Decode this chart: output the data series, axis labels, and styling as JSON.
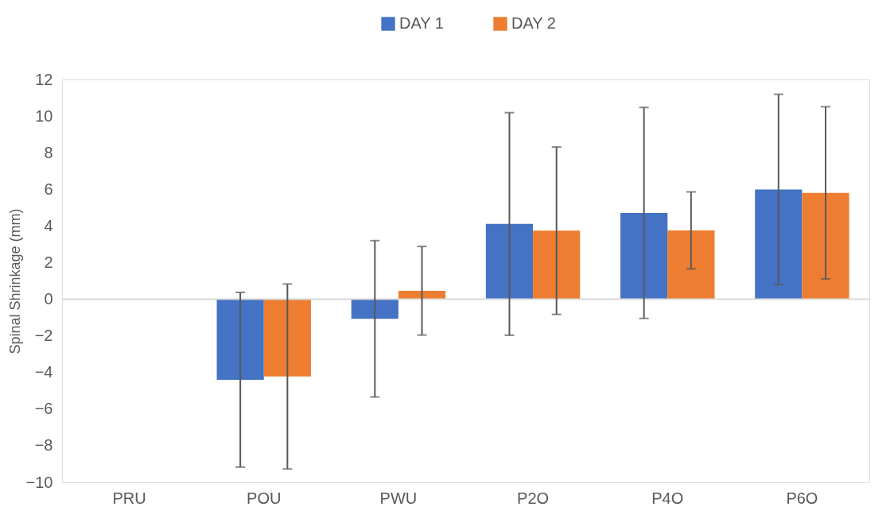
{
  "chart_data": {
    "type": "bar",
    "ylabel": "Spinal Shrinkage  (mm)",
    "categories": [
      "PRU",
      "POU",
      "PWU",
      "P2O",
      "P4O",
      "P6O"
    ],
    "series": [
      {
        "name": "DAY 1",
        "color": "#4472c4",
        "values": [
          0,
          -4.4,
          -1.07,
          4.11,
          4.71,
          5.99
        ],
        "errors": [
          null,
          4.77,
          4.27,
          6.08,
          5.76,
          5.2
        ]
      },
      {
        "name": "DAY 2",
        "color": "#ed7d31",
        "values": [
          0,
          -4.22,
          0.46,
          3.74,
          3.76,
          5.81
        ],
        "errors": [
          null,
          5.05,
          2.42,
          4.57,
          2.1,
          4.7
        ]
      }
    ],
    "ylim": [
      -10,
      12
    ],
    "yticks": [
      -10,
      -8,
      -6,
      -4,
      -2,
      0,
      2,
      4,
      6,
      8,
      10,
      12
    ],
    "ref_lines": [
      {
        "axis": "y",
        "value": 0,
        "color": "#d9d9d9"
      }
    ],
    "grid": false,
    "legend": "top"
  }
}
